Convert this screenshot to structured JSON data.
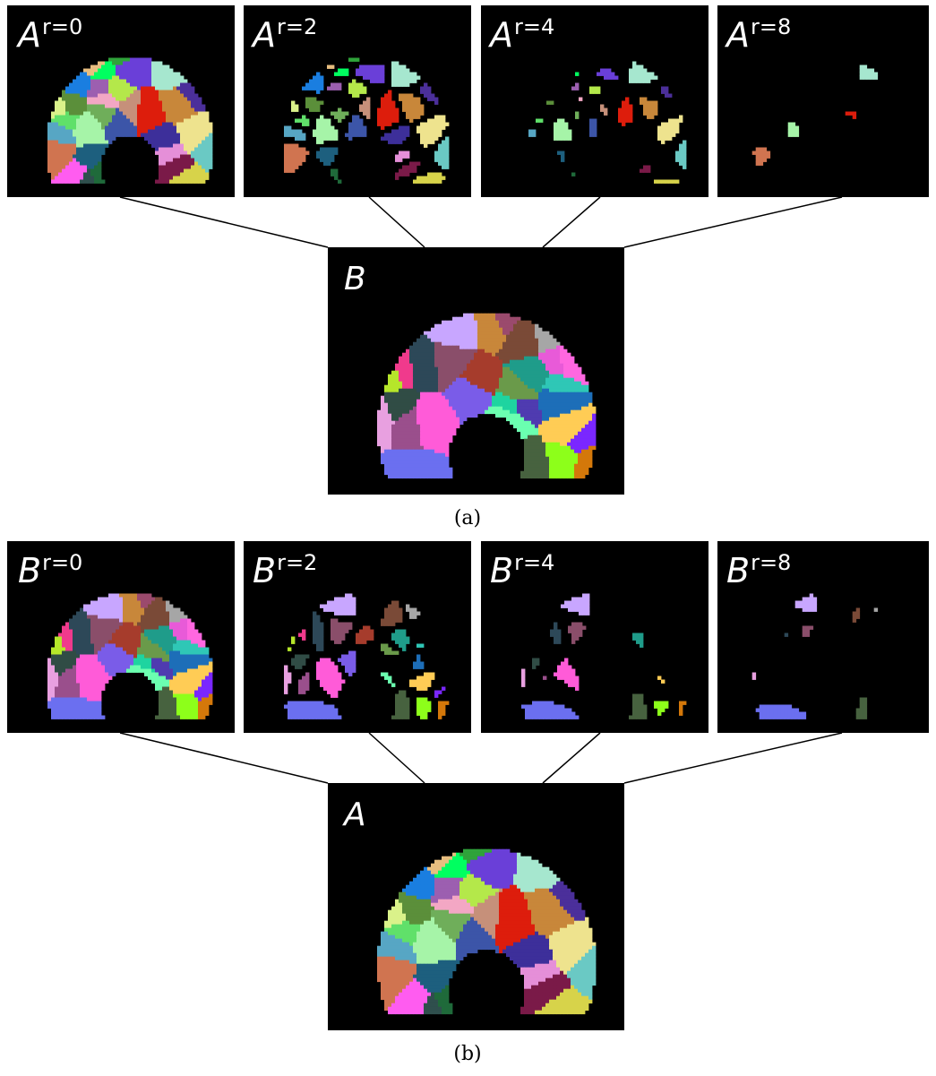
{
  "section_a": {
    "top_panels": [
      {
        "base": "A",
        "sup": "r=0",
        "gap": 0,
        "erosion": 0
      },
      {
        "base": "A",
        "sup": "r=2",
        "gap": 3,
        "erosion": 0.1
      },
      {
        "base": "A",
        "sup": "r=4",
        "gap": 5,
        "erosion": 0.22
      },
      {
        "base": "A",
        "sup": "r=8",
        "gap": 7,
        "erosion": 0.45
      }
    ],
    "bottom_panel": {
      "base": "B",
      "sup": ""
    },
    "caption": "(a)"
  },
  "section_b": {
    "top_panels": [
      {
        "base": "B",
        "sup": "r=0",
        "gap": 0,
        "erosion": 0
      },
      {
        "base": "B",
        "sup": "r=2",
        "gap": 3,
        "erosion": 0.1
      },
      {
        "base": "B",
        "sup": "r=4",
        "gap": 5,
        "erosion": 0.22
      },
      {
        "base": "B",
        "sup": "r=8",
        "gap": 7,
        "erosion": 0.45
      }
    ],
    "bottom_panel": {
      "base": "A",
      "sup": ""
    },
    "caption": "(b)"
  },
  "colors": {
    "panel_background": "#000000",
    "segmentation_A": [
      "#ff5cf0",
      "#3c55a8",
      "#c8873a",
      "#6fae5a",
      "#d07450",
      "#4b2f9a",
      "#daf28a",
      "#2fa33a",
      "#57a6c4",
      "#a6f4a8",
      "#9c5fb0",
      "#e8be80",
      "#eee38e",
      "#6a3fd8",
      "#2f4f4d",
      "#dd1d0c",
      "#5b8f3a",
      "#e58fd8",
      "#60e06a",
      "#7a1a48",
      "#f3a7c4",
      "#c6907a",
      "#d7d34a",
      "#1f6a3a",
      "#1a7ee0",
      "#6ac9c4",
      "#1d5f7e",
      "#a6e7cf",
      "#b4e84a",
      "#00ff60",
      "#3d2f9a"
    ],
    "segmentation_B": [
      "#ff67e0",
      "#9a4f8c",
      "#6b6ff0",
      "#8a4e6a",
      "#1ed4a0",
      "#7a4a37",
      "#304c45",
      "#ff5bd8",
      "#c8a6ff",
      "#8dff1a",
      "#47623f",
      "#c8873a",
      "#7a27ff",
      "#2d4858",
      "#9b4a6d",
      "#6a9a4a",
      "#2fc7b6",
      "#b6e62a",
      "#a6a6a6",
      "#ffcc55",
      "#a63c2c",
      "#f03a8c",
      "#d4780a",
      "#6bffb0",
      "#1d6eb8",
      "#e8a0e0",
      "#e85ad8",
      "#7a5ce8",
      "#4f3bb0",
      "#1f9c8a"
    ]
  }
}
